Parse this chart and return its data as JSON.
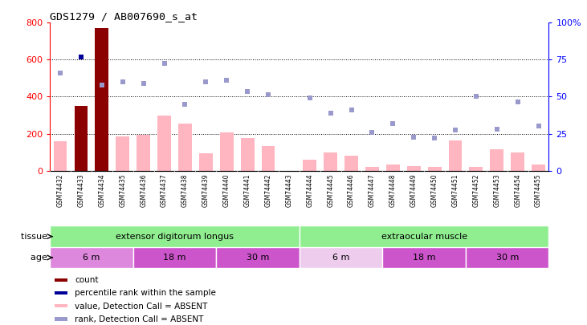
{
  "title": "GDS1279 / AB007690_s_at",
  "samples": [
    "GSM74432",
    "GSM74433",
    "GSM74434",
    "GSM74435",
    "GSM74436",
    "GSM74437",
    "GSM74438",
    "GSM74439",
    "GSM74440",
    "GSM74441",
    "GSM74442",
    "GSM74443",
    "GSM74444",
    "GSM74445",
    "GSM74446",
    "GSM74447",
    "GSM74448",
    "GSM74449",
    "GSM74450",
    "GSM74451",
    "GSM74452",
    "GSM74453",
    "GSM74454",
    "GSM74455"
  ],
  "bar_values": [
    160,
    350,
    770,
    185,
    195,
    300,
    255,
    95,
    205,
    175,
    135,
    null,
    60,
    100,
    80,
    20,
    35,
    25,
    20,
    165,
    20,
    115,
    100,
    35
  ],
  "special_bars": [
    "GSM74433",
    "GSM74434"
  ],
  "rank_values": [
    530,
    615,
    465,
    480,
    470,
    580,
    360,
    480,
    490,
    430,
    410,
    null,
    395,
    310,
    330,
    205,
    255,
    180,
    175,
    220,
    400,
    225,
    370,
    240
  ],
  "percentile_special_idx": 1,
  "percentile_special_val": 615,
  "ylim_left": [
    0,
    800
  ],
  "ylim_right": [
    0,
    100
  ],
  "yticks_left": [
    0,
    200,
    400,
    600,
    800
  ],
  "yticks_right": [
    0,
    25,
    50,
    75,
    100
  ],
  "right_tick_labels": [
    "0",
    "25",
    "50",
    "75",
    "100%"
  ],
  "bar_color_normal": "#FFB6C1",
  "bar_color_dark": "#8B0000",
  "rank_color_absent": "#9999CC",
  "percentile_color": "#000099",
  "tissue_groups": [
    {
      "label": "extensor digitorum longus",
      "start": 0,
      "end": 12,
      "color": "#90EE90"
    },
    {
      "label": "extraocular muscle",
      "start": 12,
      "end": 24,
      "color": "#90EE90"
    }
  ],
  "age_groups": [
    {
      "label": "6 m",
      "start": 0,
      "end": 4,
      "color": "#DD88DD"
    },
    {
      "label": "18 m",
      "start": 4,
      "end": 8,
      "color": "#CC55CC"
    },
    {
      "label": "30 m",
      "start": 8,
      "end": 12,
      "color": "#CC55CC"
    },
    {
      "label": "6 m",
      "start": 12,
      "end": 16,
      "color": "#EECCEE"
    },
    {
      "label": "18 m",
      "start": 16,
      "end": 20,
      "color": "#CC55CC"
    },
    {
      "label": "30 m",
      "start": 20,
      "end": 24,
      "color": "#CC55CC"
    }
  ],
  "legend_items": [
    {
      "color": "#8B0000",
      "label": "count"
    },
    {
      "color": "#000099",
      "label": "percentile rank within the sample"
    },
    {
      "color": "#FFB6C1",
      "label": "value, Detection Call = ABSENT"
    },
    {
      "color": "#9999CC",
      "label": "rank, Detection Call = ABSENT"
    }
  ],
  "xtick_bg": "#CCCCCC",
  "bg_color": "white"
}
